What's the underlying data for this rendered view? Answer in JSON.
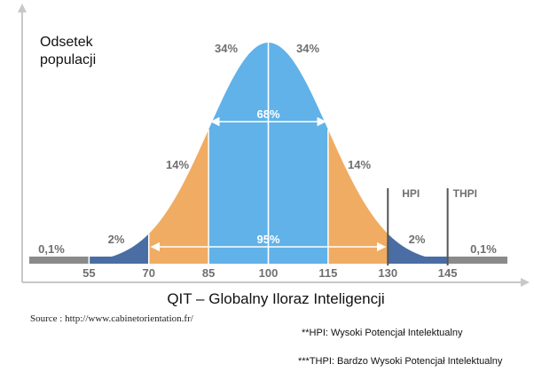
{
  "chart_data": {
    "type": "area",
    "ylabel_lines": [
      "Odsetek",
      "populacji"
    ],
    "xlabel": "QIT – Globalny Iloraz Inteligencji",
    "xticks": [
      55,
      70,
      85,
      100,
      115,
      130,
      145
    ],
    "mean": 100,
    "sd": 15,
    "bands": [
      {
        "from": 40,
        "to": 55,
        "percent": "0,1%",
        "color": "#8a8a8a"
      },
      {
        "from": 55,
        "to": 70,
        "percent": "2%",
        "color": "#4a6ea3"
      },
      {
        "from": 70,
        "to": 85,
        "percent": "14%",
        "color": "#f0ac63"
      },
      {
        "from": 85,
        "to": 100,
        "percent": "34%",
        "color": "#60b2e8"
      },
      {
        "from": 100,
        "to": 115,
        "percent": "34%",
        "color": "#60b2e8"
      },
      {
        "from": 115,
        "to": 130,
        "percent": "14%",
        "color": "#f0ac63"
      },
      {
        "from": 130,
        "to": 145,
        "percent": "2%",
        "color": "#4a6ea3"
      },
      {
        "from": 145,
        "to": 160,
        "percent": "0,1%",
        "color": "#8a8a8a"
      }
    ],
    "ranges": [
      {
        "from": 85,
        "to": 115,
        "label": "68%"
      },
      {
        "from": 70,
        "to": 130,
        "label": "95%"
      }
    ],
    "markers": [
      {
        "at": 130,
        "label": "HPI"
      },
      {
        "at": 145,
        "label": "THPI"
      }
    ]
  },
  "source": "Source : http://www.cabinetorientation.fr/",
  "notes": {
    "hpi": "**HPI: Wysoki Potencjał Intelektualny",
    "thpi": "***THPI: Bardzo Wysoki Potencjał Intelektualny"
  }
}
